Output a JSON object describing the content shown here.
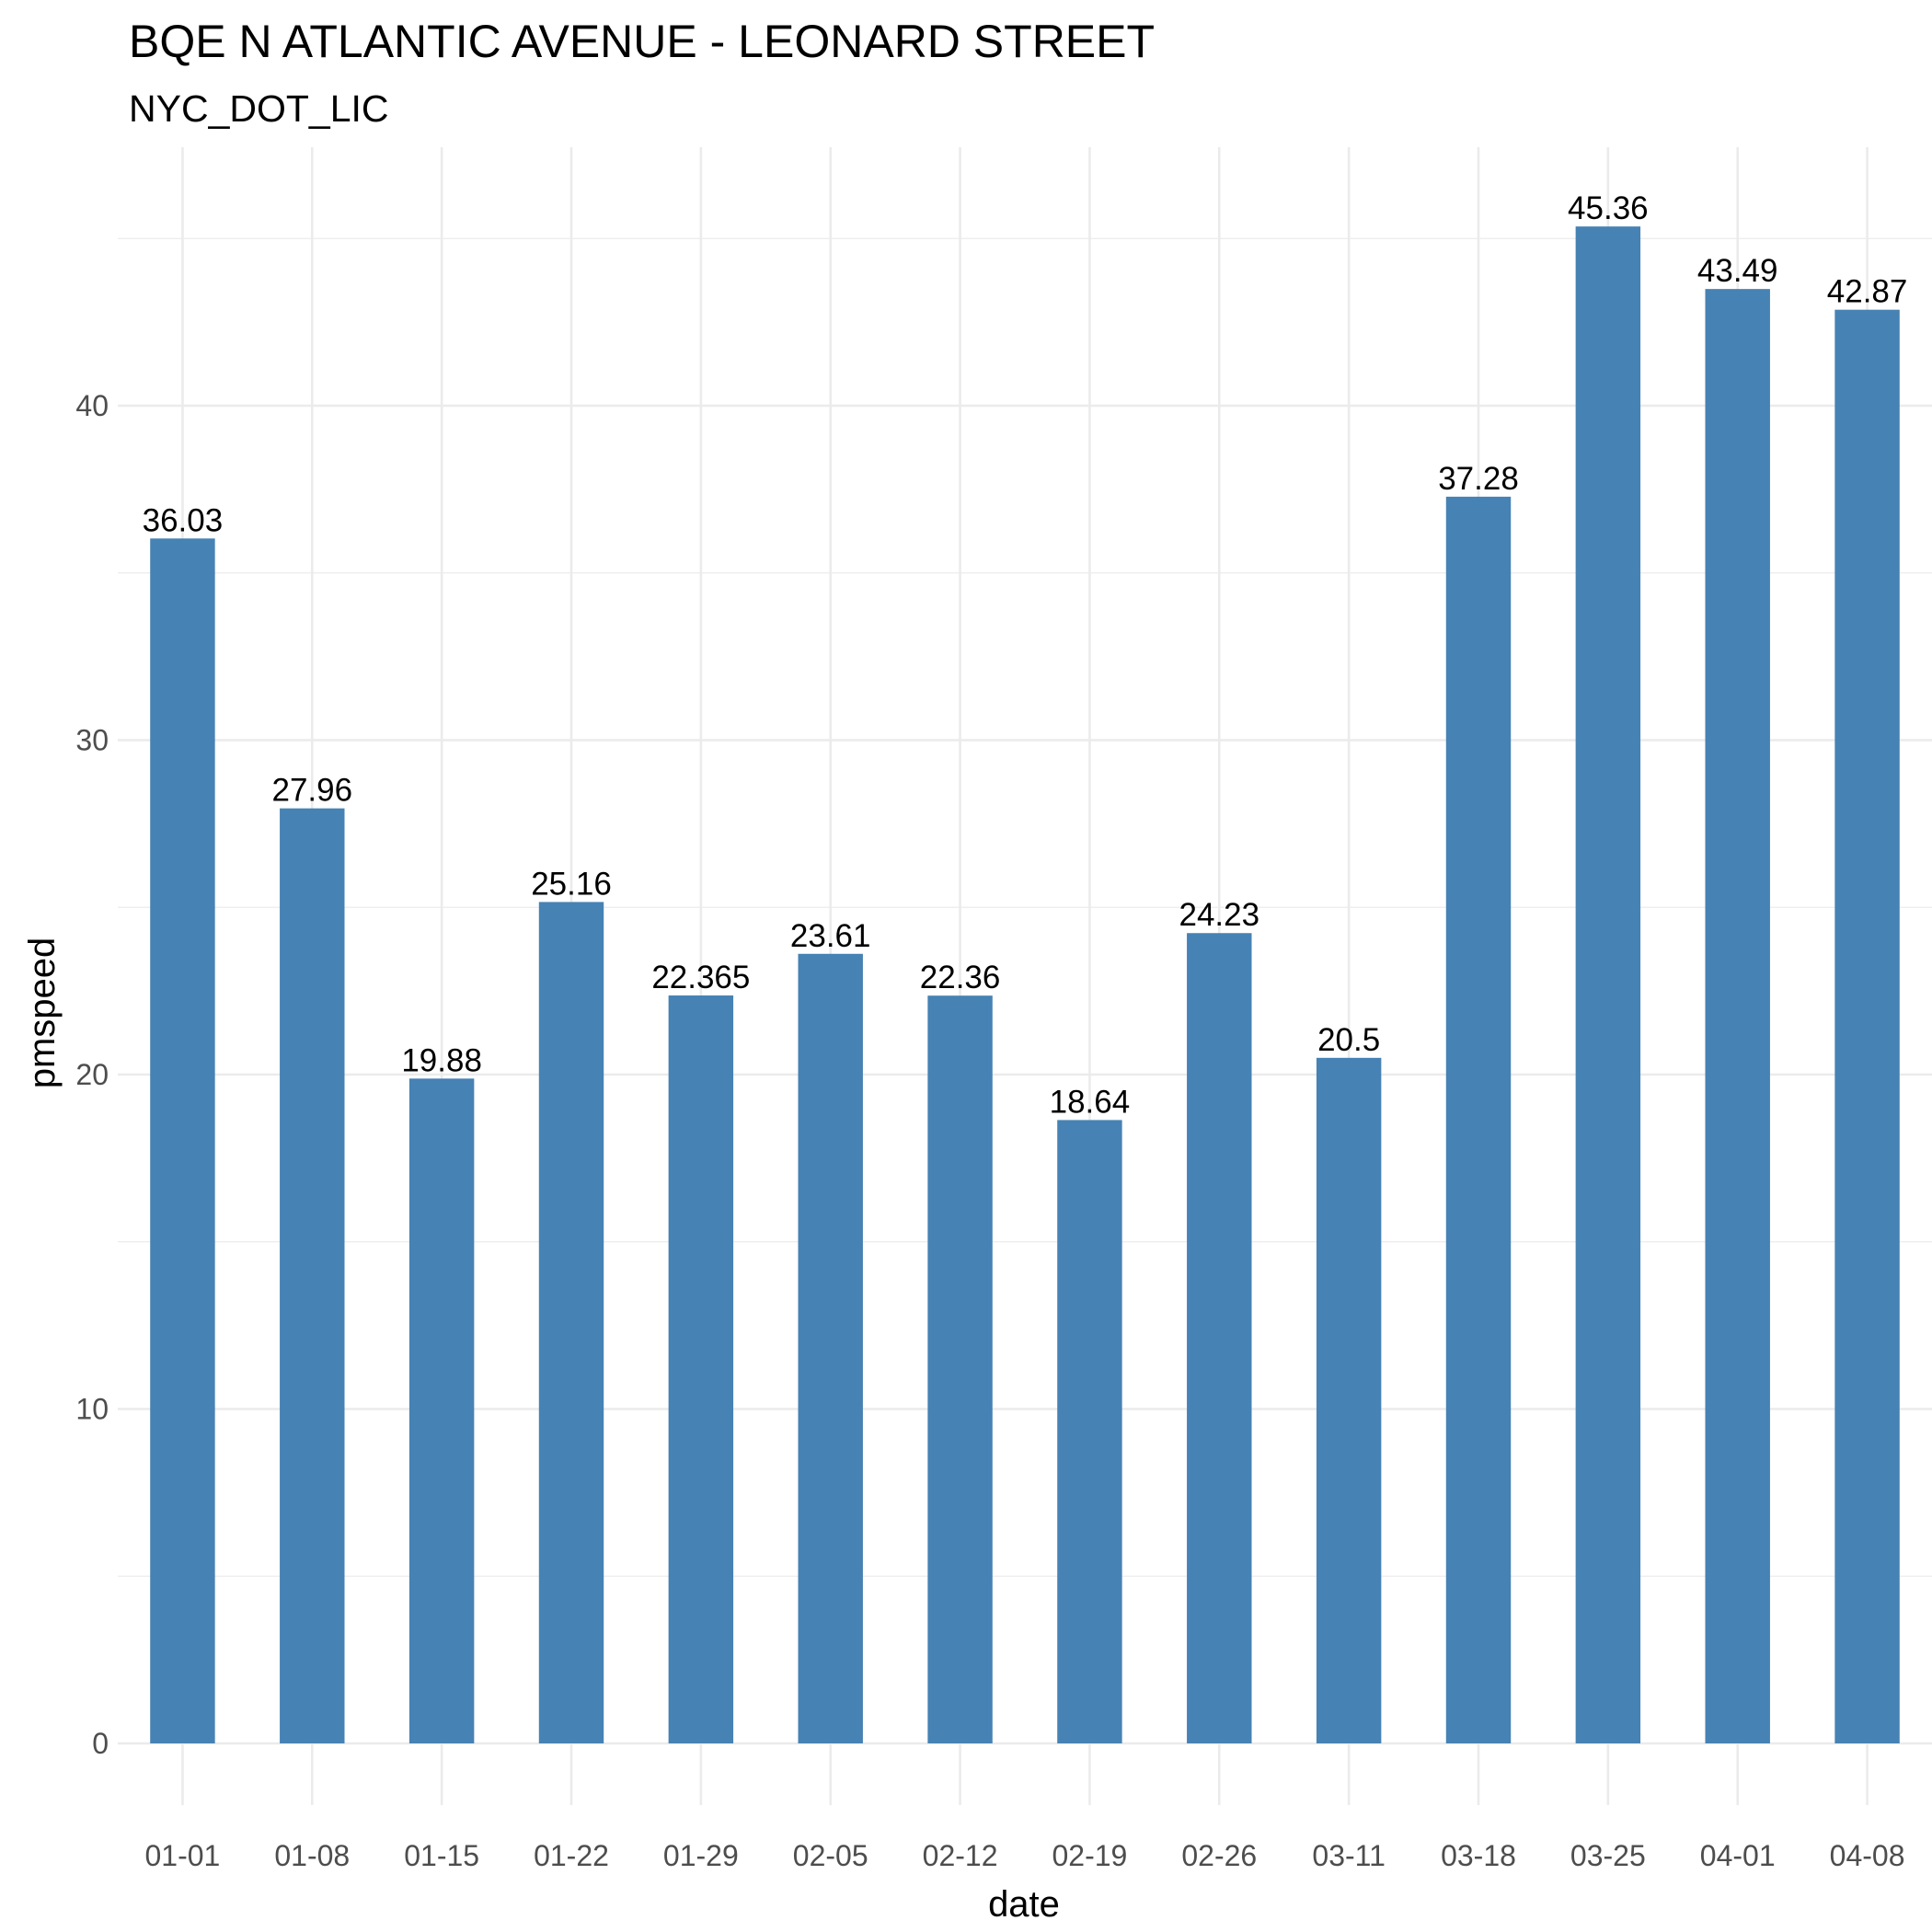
{
  "chart_data": {
    "type": "bar",
    "title": "BQE N ATLANTIC AVENUE - LEONARD STREET",
    "subtitle": "NYC_DOT_LIC",
    "xlabel": "date",
    "ylabel": "pmspeed",
    "categories": [
      "01-01",
      "01-08",
      "01-15",
      "01-22",
      "01-29",
      "02-05",
      "02-12",
      "02-19",
      "02-26",
      "03-11",
      "03-18",
      "03-25",
      "04-01",
      "04-08"
    ],
    "values": [
      36.03,
      27.96,
      19.88,
      25.16,
      22.365,
      23.61,
      22.36,
      18.64,
      24.23,
      20.5,
      37.28,
      45.36,
      43.49,
      42.87
    ],
    "data_labels": [
      "36.03",
      "27.96",
      "19.88",
      "25.16",
      "22.365",
      "23.61",
      "22.36",
      "18.64",
      "24.23",
      "20.5",
      "37.28",
      "45.36",
      "43.49",
      "42.87"
    ],
    "ylim": [
      0,
      47.6
    ],
    "yticks": [
      0,
      10,
      20,
      30,
      40
    ],
    "ytick_labels": [
      "0",
      "10",
      "20",
      "30",
      "40"
    ],
    "grid": true,
    "legend": "none",
    "bar_color": "#4682b4",
    "grid_color": "#ebebeb"
  }
}
